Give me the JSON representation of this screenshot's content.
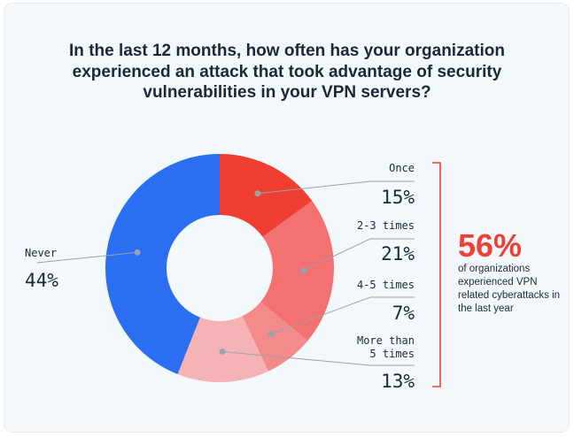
{
  "title": "In the last 12 months, how often has your organization experienced an attack that took advantage of security vulnerabilities in your VPN servers?",
  "chart_data": {
    "type": "pie",
    "style": "donut",
    "categories": [
      "Once",
      "2-3 times",
      "4-5 times",
      "More than\n5 times",
      "Never"
    ],
    "values": [
      15,
      21,
      7,
      13,
      44
    ],
    "value_labels": [
      "15%",
      "21%",
      "7%",
      "13%",
      "44%"
    ],
    "colors": [
      "#f03e33",
      "#f47171",
      "#f48a8a",
      "#f5b3b5",
      "#2b6ef2"
    ],
    "legend": "none"
  },
  "callout": {
    "value": "56%",
    "text": "of organizations experienced VPN related cyberattacks in the last year",
    "color": "#ee4136"
  }
}
